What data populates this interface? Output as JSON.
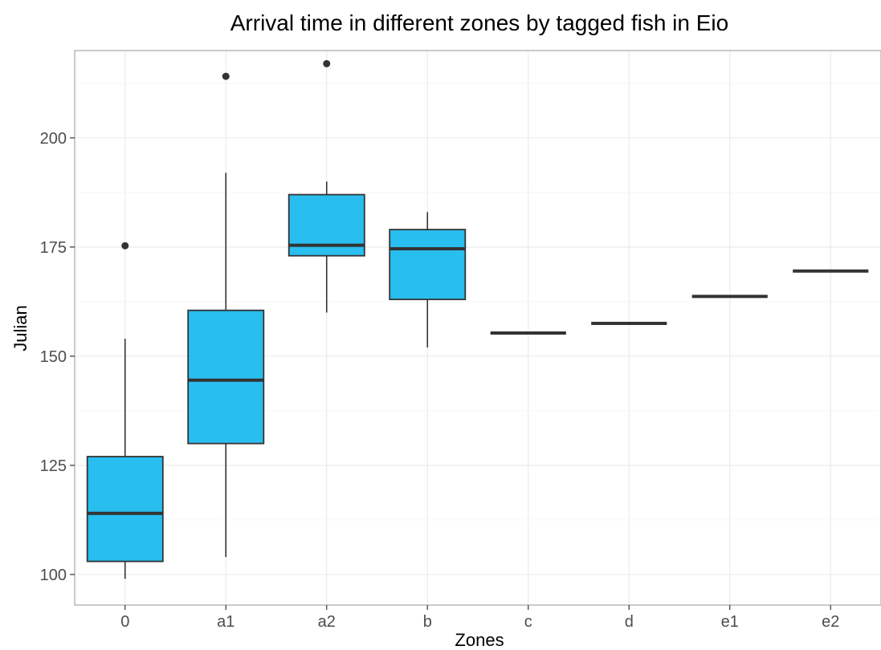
{
  "chart_data": {
    "type": "boxplot",
    "title": "Arrival time in different zones by tagged fish in Eio",
    "xlabel": "Zones",
    "ylabel": "Julian",
    "ylim": [
      93,
      220
    ],
    "yticks": [
      100,
      125,
      150,
      175,
      200
    ],
    "categories": [
      "0",
      "a1",
      "a2",
      "b",
      "c",
      "d",
      "e1",
      "e2"
    ],
    "boxes": [
      {
        "category": "0",
        "whisker_low": 99,
        "q1": 103,
        "median": 114,
        "q3": 127,
        "whisker_high": 154,
        "outliers": [
          175.3
        ]
      },
      {
        "category": "a1",
        "whisker_low": 104,
        "q1": 130,
        "median": 144.5,
        "q3": 160.5,
        "whisker_high": 192,
        "outliers": [
          214.1
        ]
      },
      {
        "category": "a2",
        "whisker_low": 160,
        "q1": 173,
        "median": 175.4,
        "q3": 187,
        "whisker_high": 190,
        "outliers": [
          217
        ]
      },
      {
        "category": "b",
        "whisker_low": 152,
        "q1": 163,
        "median": 174.6,
        "q3": 179,
        "whisker_high": 183,
        "outliers": []
      },
      {
        "category": "c",
        "whisker_low": 155.3,
        "q1": 155.3,
        "median": 155.3,
        "q3": 155.3,
        "whisker_high": 155.3,
        "outliers": []
      },
      {
        "category": "d",
        "whisker_low": 157.5,
        "q1": 157.5,
        "median": 157.5,
        "q3": 157.5,
        "whisker_high": 157.5,
        "outliers": []
      },
      {
        "category": "e1",
        "whisker_low": 163.7,
        "q1": 163.7,
        "median": 163.7,
        "q3": 163.7,
        "whisker_high": 163.7,
        "outliers": []
      },
      {
        "category": "e2",
        "whisker_low": 169.5,
        "q1": 169.5,
        "median": 169.5,
        "q3": 169.5,
        "whisker_high": 169.5,
        "outliers": []
      }
    ],
    "box_fill": "#29bef0",
    "line_color": "#333333",
    "grid": true,
    "legend": "none"
  }
}
